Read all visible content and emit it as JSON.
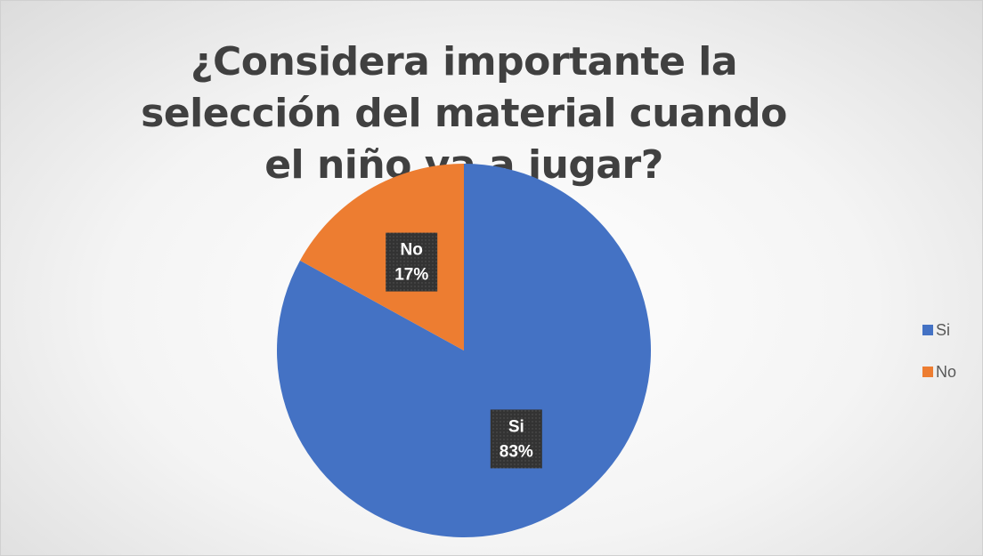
{
  "chart_data": {
    "type": "pie",
    "title": "¿Considera importante la selección del material cuando el niño va a jugar?",
    "categories": [
      "Si",
      "No"
    ],
    "values": [
      83,
      17
    ],
    "value_labels": [
      "83%",
      "17%"
    ],
    "colors": [
      "#4472c4",
      "#ed7d31"
    ],
    "legend": "right"
  }
}
